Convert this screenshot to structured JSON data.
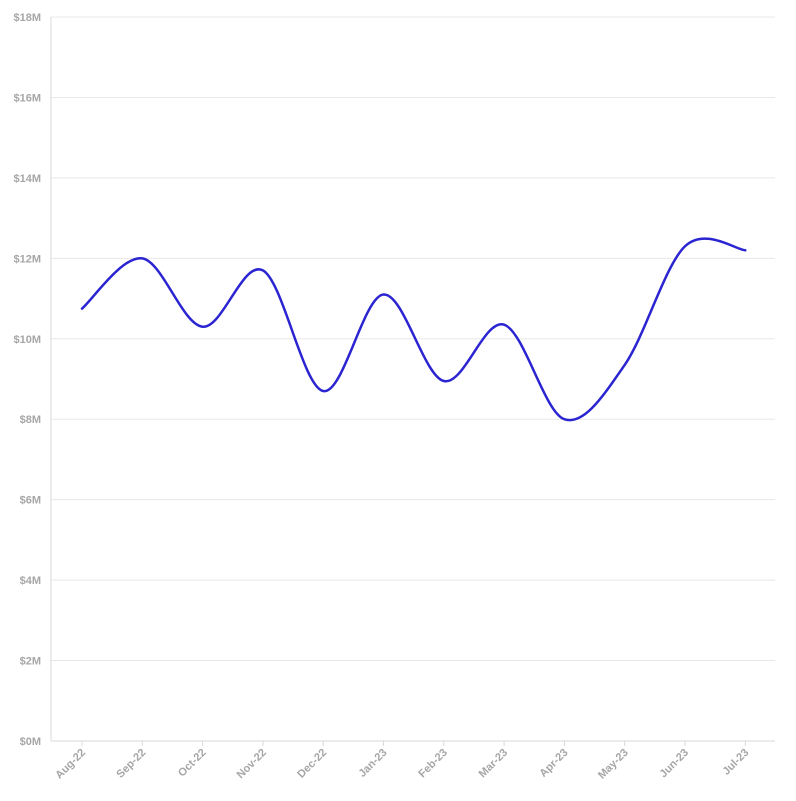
{
  "chart_data": {
    "type": "line",
    "title": "",
    "xlabel": "",
    "ylabel": "",
    "categories": [
      "Aug-22",
      "Sep-22",
      "Oct-22",
      "Nov-22",
      "Dec-22",
      "Jan-23",
      "Feb-23",
      "Mar-23",
      "Apr-23",
      "May-23",
      "Jun-23",
      "Jul-23"
    ],
    "series": [
      {
        "values": [
          10.75,
          12.0,
          10.3,
          11.7,
          8.7,
          11.1,
          8.95,
          10.35,
          8.0,
          9.35,
          12.3,
          12.2
        ]
      }
    ],
    "ylim": [
      0,
      18
    ],
    "y_ticks": [
      0,
      2,
      4,
      6,
      8,
      10,
      12,
      14,
      16,
      18
    ],
    "y_tick_labels": [
      "$0M",
      "$2M",
      "$4M",
      "$6M",
      "$8M",
      "$10M",
      "$12M",
      "$14M",
      "$16M",
      "$18M"
    ],
    "grid": true,
    "legend": "none",
    "smooth": true,
    "colors": {
      "line": "#2b24d1",
      "grid": "#e8e8e8",
      "tick_text": "#a6a6a6"
    }
  }
}
